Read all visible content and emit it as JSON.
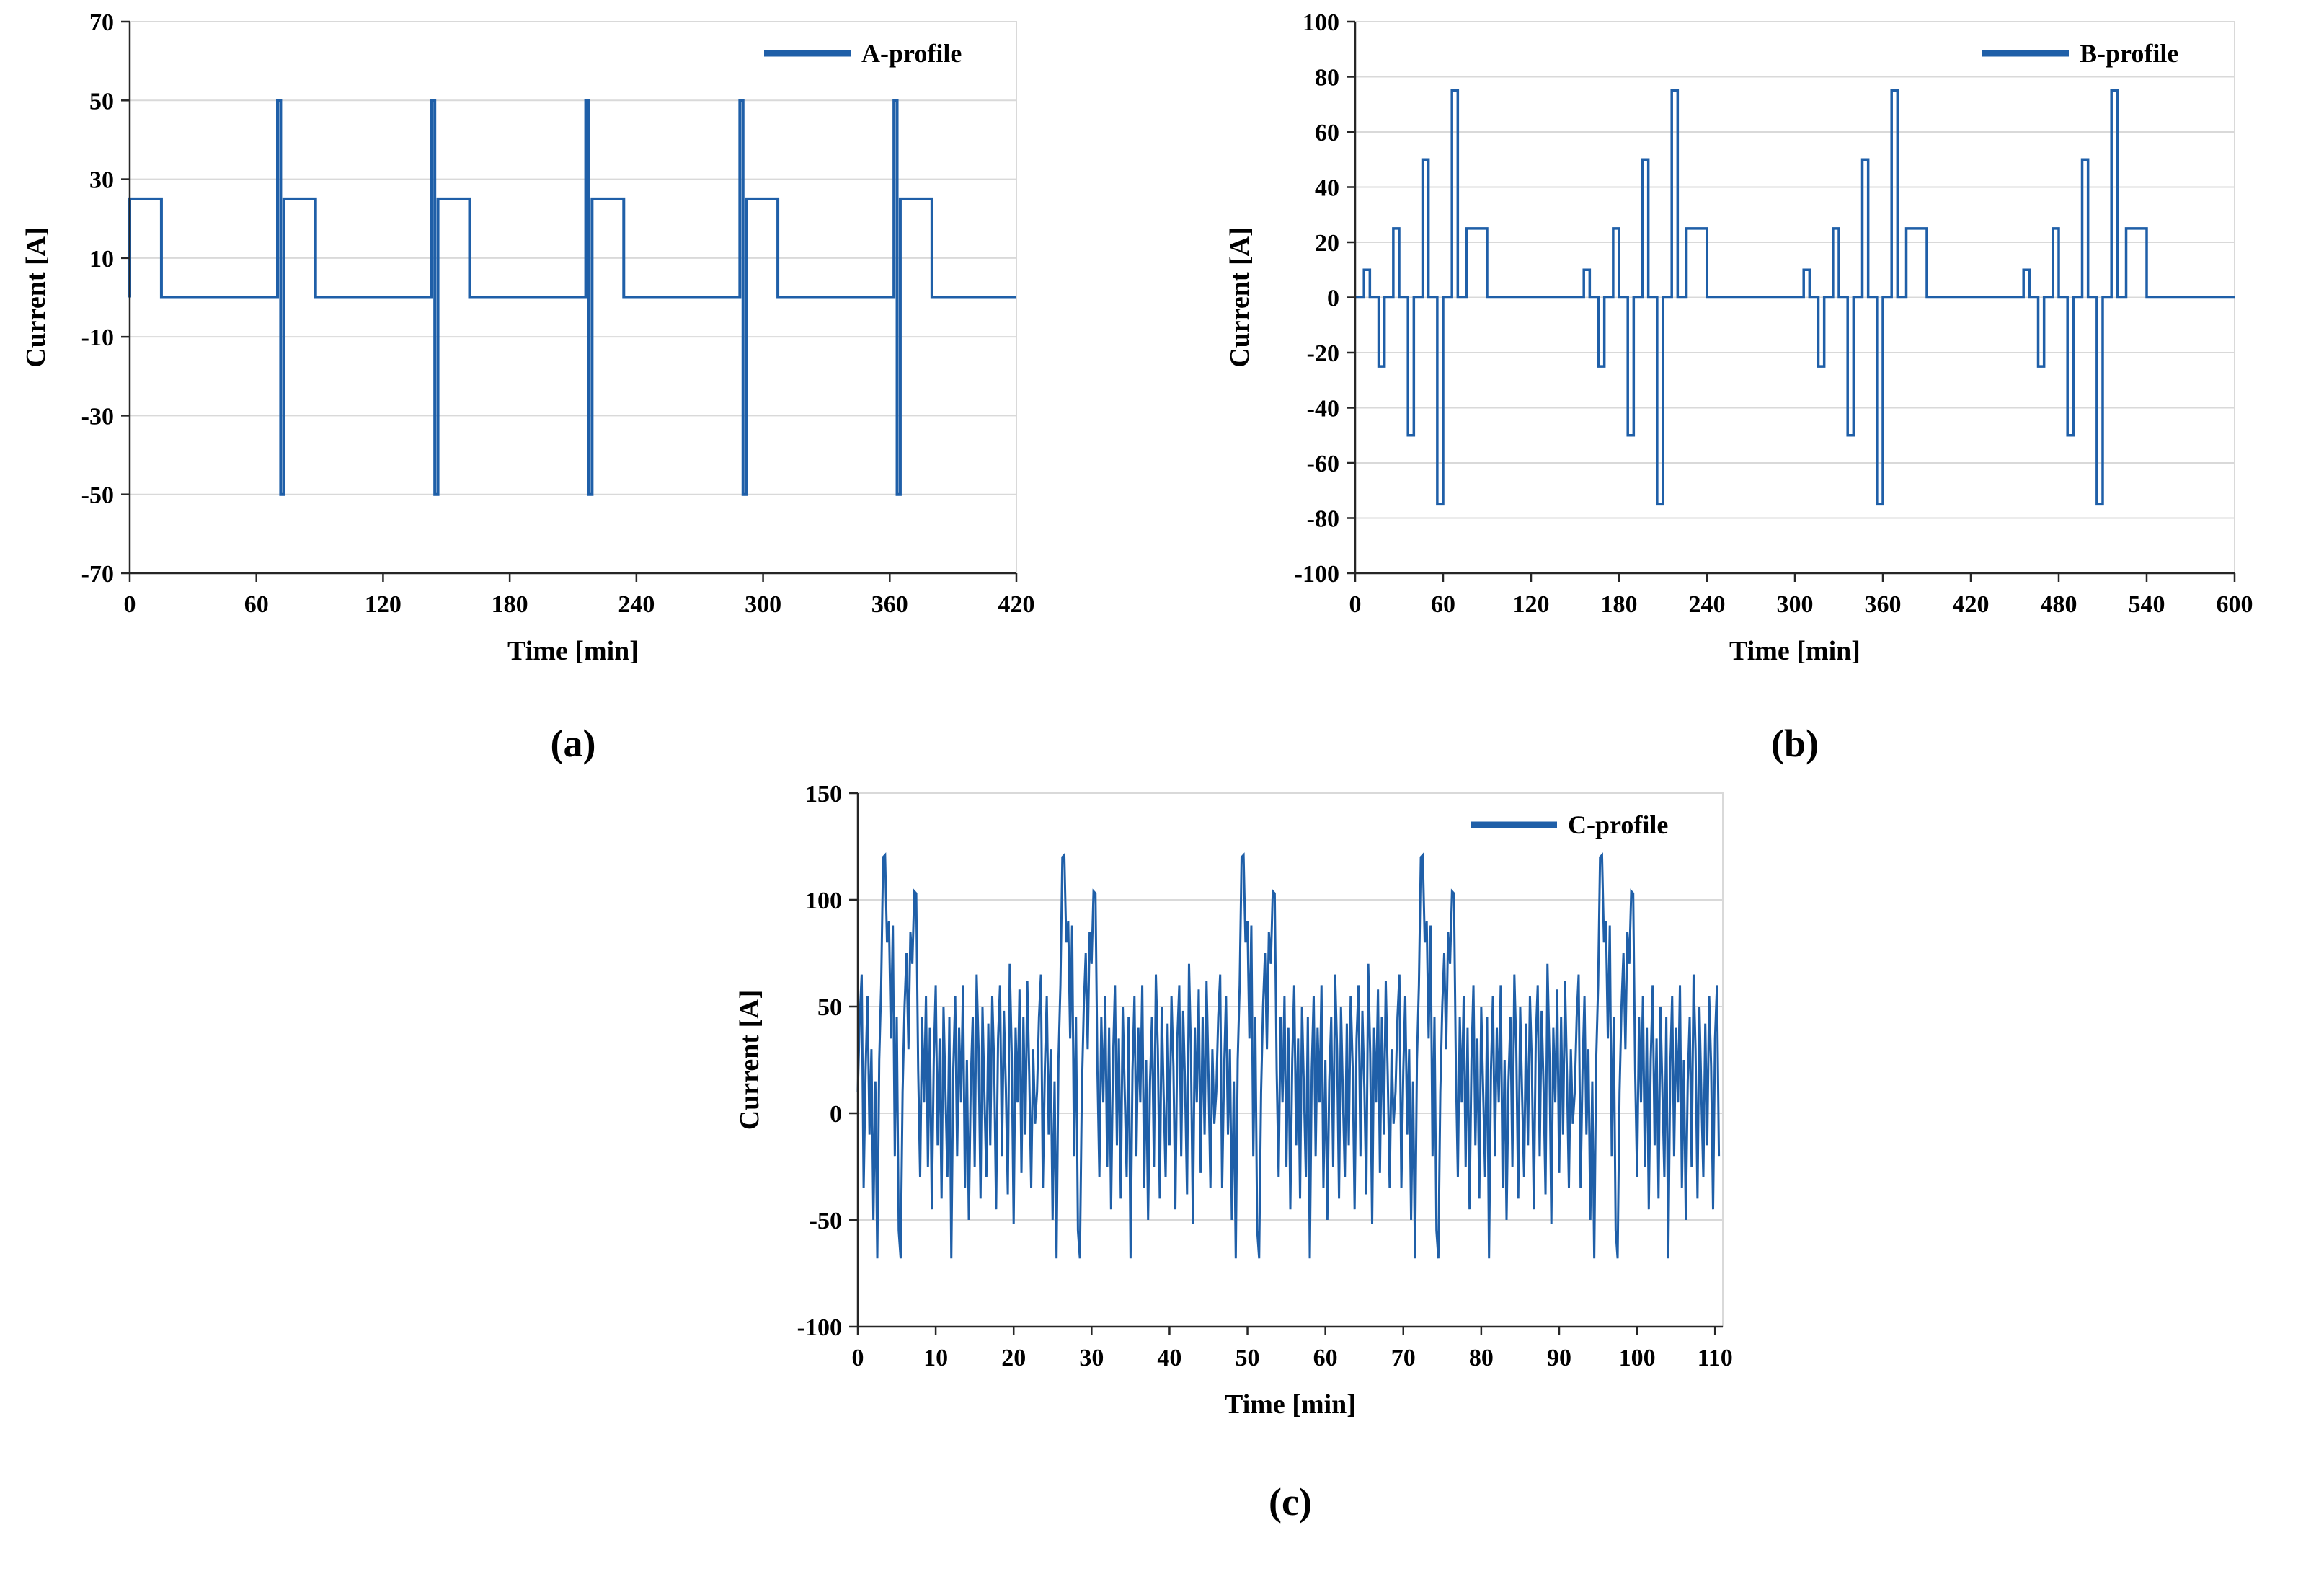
{
  "figure": {
    "captions": {
      "a": "(a)",
      "b": "(b)",
      "c": "(c)"
    }
  },
  "colors": {
    "line": "#1f5fa8",
    "grid": "#d9d9d9",
    "axis": "#262626",
    "text": "#000000"
  },
  "chart_data": [
    {
      "id": "a",
      "type": "line",
      "legend": "A-profile",
      "xlabel": "Time [min]",
      "ylabel": "Current [A]",
      "xlim": [
        0,
        420
      ],
      "ylim": [
        -70,
        70
      ],
      "xticks": [
        0,
        60,
        120,
        180,
        240,
        300,
        360,
        420
      ],
      "yticks": [
        70,
        50,
        30,
        10,
        -10,
        -30,
        -50,
        -70
      ],
      "grid": "horizontal",
      "legend_position": "top-right",
      "series_format": "step_segments",
      "segments_units": "[t_start_min, t_end_min, current_A]",
      "segments": [
        [
          0,
          15,
          25
        ],
        [
          15,
          70,
          0
        ],
        [
          70,
          71.5,
          50
        ],
        [
          71.5,
          73,
          -50
        ],
        [
          73,
          88,
          25
        ],
        [
          88,
          143,
          0
        ],
        [
          143,
          144.5,
          50
        ],
        [
          144.5,
          146,
          -50
        ],
        [
          146,
          161,
          25
        ],
        [
          161,
          216,
          0
        ],
        [
          216,
          217.5,
          50
        ],
        [
          217.5,
          219,
          -50
        ],
        [
          219,
          234,
          25
        ],
        [
          234,
          289,
          0
        ],
        [
          289,
          290.5,
          50
        ],
        [
          290.5,
          292,
          -50
        ],
        [
          292,
          307,
          25
        ],
        [
          307,
          362,
          0
        ],
        [
          362,
          363.5,
          50
        ],
        [
          363.5,
          365,
          -50
        ],
        [
          365,
          380,
          25
        ],
        [
          380,
          420,
          0
        ]
      ]
    },
    {
      "id": "b",
      "type": "line",
      "legend": "B-profile",
      "xlabel": "Time [min]",
      "ylabel": "Current [A]",
      "xlim": [
        0,
        600
      ],
      "ylim": [
        -100,
        100
      ],
      "xticks": [
        0,
        60,
        120,
        180,
        240,
        300,
        360,
        420,
        480,
        540,
        600
      ],
      "yticks": [
        100,
        80,
        60,
        40,
        20,
        0,
        -20,
        -40,
        -60,
        -80,
        -100
      ],
      "grid": "horizontal",
      "legend_position": "top-right",
      "series_format": "step_segments",
      "segments_units": "[t_start_min, t_end_min, current_A]",
      "segments": [
        [
          6,
          10,
          10
        ],
        [
          16,
          20,
          -25
        ],
        [
          26,
          30,
          25
        ],
        [
          36,
          40,
          -50
        ],
        [
          46,
          50,
          50
        ],
        [
          56,
          60,
          -75
        ],
        [
          66,
          70,
          75
        ],
        [
          76,
          90,
          25
        ],
        [
          156,
          160,
          10
        ],
        [
          166,
          170,
          -25
        ],
        [
          176,
          180,
          25
        ],
        [
          186,
          190,
          -50
        ],
        [
          196,
          200,
          50
        ],
        [
          206,
          210,
          -75
        ],
        [
          216,
          220,
          75
        ],
        [
          226,
          240,
          25
        ],
        [
          306,
          310,
          10
        ],
        [
          316,
          320,
          -25
        ],
        [
          326,
          330,
          25
        ],
        [
          336,
          340,
          -50
        ],
        [
          346,
          350,
          50
        ],
        [
          356,
          360,
          -75
        ],
        [
          366,
          370,
          75
        ],
        [
          376,
          390,
          25
        ],
        [
          456,
          460,
          10
        ],
        [
          466,
          470,
          -25
        ],
        [
          476,
          480,
          25
        ],
        [
          486,
          490,
          -50
        ],
        [
          496,
          500,
          50
        ],
        [
          506,
          510,
          -75
        ],
        [
          516,
          520,
          75
        ],
        [
          526,
          540,
          25
        ]
      ]
    },
    {
      "id": "c",
      "type": "line",
      "legend": "C-profile",
      "xlabel": "Time [min]",
      "ylabel": "Current [A]",
      "xlim": [
        0,
        111
      ],
      "ylim": [
        -100,
        150
      ],
      "xticks": [
        0,
        10,
        20,
        30,
        40,
        50,
        60,
        70,
        80,
        90,
        100,
        110
      ],
      "yticks": [
        150,
        100,
        50,
        0,
        -50,
        -100
      ],
      "grid": "horizontal",
      "legend_position": "top-right",
      "series_format": "sampled_cycle",
      "x_start": 0,
      "dt_min": 0.25,
      "t_end_min": 110.5,
      "cycle_period_min": 23,
      "cycle_values": [
        10,
        45,
        65,
        -35,
        20,
        55,
        -10,
        30,
        -50,
        15,
        -68,
        25,
        60,
        120,
        121,
        80,
        90,
        35,
        88,
        -20,
        45,
        -55,
        -68,
        10,
        50,
        75,
        30,
        85,
        70,
        104,
        103,
        20,
        -30,
        45,
        5,
        55,
        -25,
        40,
        -45,
        25,
        60,
        -15,
        35,
        -40,
        50,
        10,
        -30,
        45,
        -68,
        20,
        55,
        -20,
        40,
        5,
        60,
        -35,
        25,
        -50,
        15,
        45,
        -25,
        65,
        30,
        -40,
        50,
        8,
        -30,
        42,
        -15,
        55,
        22,
        -45,
        35,
        60,
        -20,
        48,
        12,
        -38,
        70,
        28,
        -52,
        40,
        5,
        58,
        -28,
        45,
        -10,
        62,
        18,
        -35,
        30,
        -5
      ]
    }
  ]
}
